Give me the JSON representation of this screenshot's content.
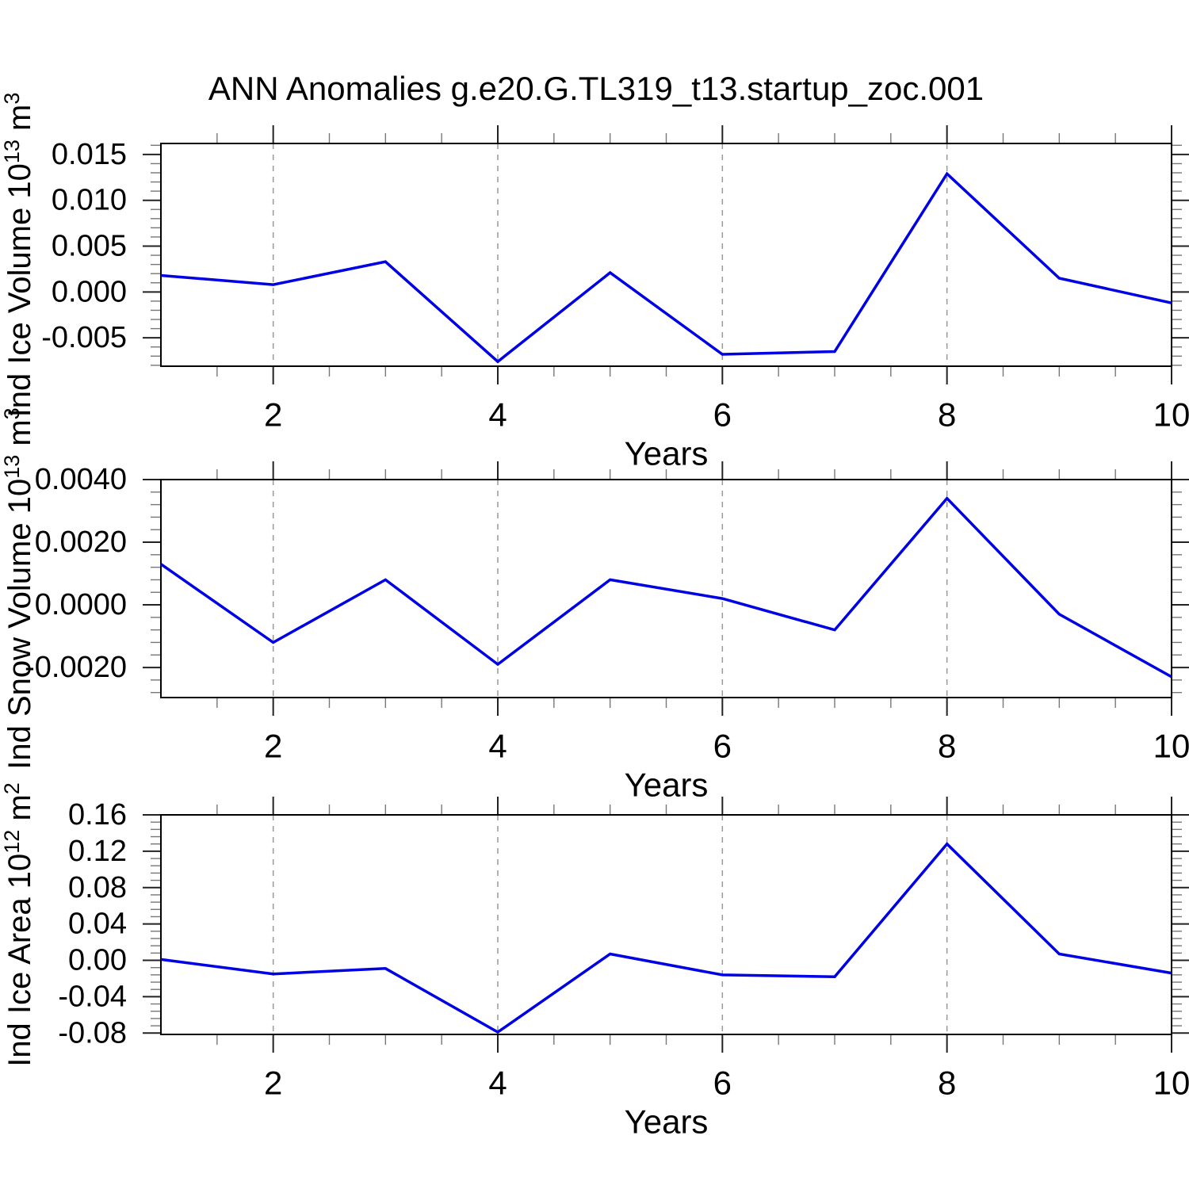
{
  "title": "ANN Anomalies g.e20.G.TL319_t13.startup_zoc.001",
  "colors": {
    "line": "#0000e6",
    "grid": "#999999",
    "axis": "#000000",
    "major_tick": "#222222",
    "minor_tick": "#777777",
    "text": "#000000"
  },
  "xaxis": {
    "label": "Years",
    "range": [
      1,
      10
    ],
    "major_ticks": [
      2,
      4,
      6,
      8,
      10
    ],
    "major_tick_labels": [
      "2",
      "4",
      "6",
      "8",
      "10"
    ],
    "minor_step": 0.5,
    "grid_lines": [
      2,
      4,
      6,
      8
    ],
    "grid_style": "dashed"
  },
  "chart_data": [
    {
      "type": "line",
      "name": "ind-ice-volume",
      "ylabel_text": "Ind Ice Volume 10^13 m^3",
      "ylabel_parts": [
        {
          "t": "Ind Ice Volume 10"
        },
        {
          "t": "13",
          "sup": true
        },
        {
          "t": " m"
        },
        {
          "t": "3",
          "sup": true
        }
      ],
      "xlabel": "Years",
      "x": [
        1,
        2,
        3,
        4,
        5,
        6,
        7,
        8,
        9,
        10
      ],
      "values": [
        0.0018,
        0.0008,
        0.0033,
        -0.0076,
        0.0021,
        -0.0068,
        -0.0065,
        0.0129,
        0.0015,
        -0.0012
      ],
      "ylim": [
        -0.0081,
        0.0162
      ],
      "y_major_ticks": [
        0.015,
        0.01,
        0.005,
        0.0,
        -0.005
      ],
      "y_tick_labels": [
        "0.015",
        "0.010",
        "0.005",
        "0.000",
        "-0.005"
      ],
      "y_minor_step": 0.001,
      "grid": true,
      "legend": "none"
    },
    {
      "type": "line",
      "name": "ind-snow-volume",
      "ylabel_text": "Ind Snow Volume 10^13 m^3",
      "ylabel_parts": [
        {
          "t": "Ind Snow Volume 10"
        },
        {
          "t": "13",
          "sup": true
        },
        {
          "t": " m"
        },
        {
          "t": "3",
          "sup": true
        }
      ],
      "xlabel": "Years",
      "x": [
        1,
        2,
        3,
        4,
        5,
        6,
        7,
        8,
        9,
        10
      ],
      "values": [
        0.0013,
        -0.0012,
        0.0008,
        -0.0019,
        0.0008,
        0.0002,
        -0.0008,
        0.0034,
        -0.0003,
        -0.0023
      ],
      "ylim": [
        -0.00296,
        0.004
      ],
      "y_major_ticks": [
        0.004,
        0.002,
        0.0,
        -0.002
      ],
      "y_tick_labels": [
        "0.0040",
        "0.0020",
        "0.0000",
        "-0.0020"
      ],
      "y_minor_step": 0.0004,
      "grid": true,
      "legend": "none"
    },
    {
      "type": "line",
      "name": "ind-ice-area",
      "ylabel_text": "Ind Ice Area 10^12 m^2",
      "ylabel_parts": [
        {
          "t": "Ind Ice Area 10"
        },
        {
          "t": "12",
          "sup": true
        },
        {
          "t": " m"
        },
        {
          "t": "2",
          "sup": true
        }
      ],
      "xlabel": "Years",
      "x": [
        1,
        2,
        3,
        4,
        5,
        6,
        7,
        8,
        9,
        10
      ],
      "values": [
        0.001,
        -0.015,
        -0.009,
        -0.079,
        0.007,
        -0.016,
        -0.018,
        0.128,
        0.007,
        -0.014
      ],
      "ylim": [
        -0.0815,
        0.16
      ],
      "y_major_ticks": [
        0.16,
        0.12,
        0.08,
        0.04,
        0.0,
        -0.04,
        -0.08
      ],
      "y_tick_labels": [
        "0.16",
        "0.12",
        "0.08",
        "0.04",
        "0.00",
        "-0.04",
        "-0.08"
      ],
      "y_minor_step": 0.008,
      "grid": true,
      "legend": "none"
    }
  ]
}
